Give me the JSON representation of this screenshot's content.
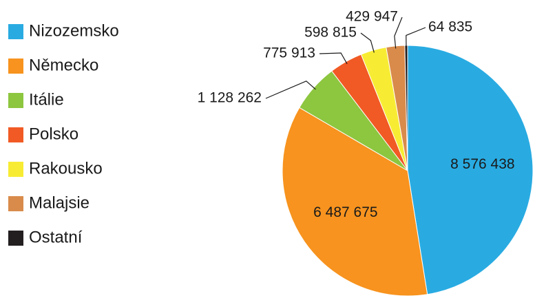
{
  "chart_data": {
    "type": "pie",
    "categories": [
      "Nizozemsko",
      "Německo",
      "Itálie",
      "Polsko",
      "Rakousko",
      "Malajsie",
      "Ostatní"
    ],
    "values": [
      8576438,
      6487675,
      1128262,
      775913,
      598815,
      429947,
      64835
    ],
    "value_labels": [
      "8 576 438",
      "6 487 675",
      "1 128 262",
      "775 913",
      "598 815",
      "429 947",
      "64 835"
    ],
    "colors": [
      "#29abe2",
      "#f7931e",
      "#8dc63f",
      "#f15a24",
      "#f7ec33",
      "#d98b4b",
      "#231f20"
    ],
    "legend": "left"
  }
}
